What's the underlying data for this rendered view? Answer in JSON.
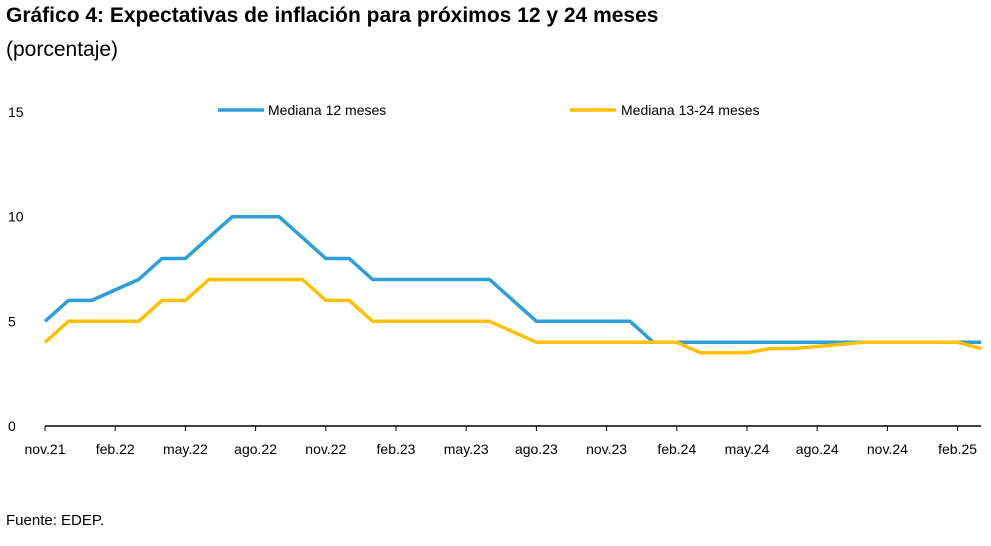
{
  "title": "Gráfico 4: Expectativas de inflación para próximos 12 y 24 meses",
  "subtitle": "(porcentaje)",
  "source": "Fuente: EDEP.",
  "chart_data": {
    "type": "line",
    "x": [
      "nov.21",
      "dic.21",
      "ene.22",
      "feb.22",
      "mar.22",
      "abr.22",
      "may.22",
      "jun.22",
      "jul.22",
      "ago.22",
      "sep.22",
      "oct.22",
      "nov.22",
      "dic.22",
      "ene.23",
      "feb.23",
      "mar.23",
      "abr.23",
      "may.23",
      "jun.23",
      "jul.23",
      "ago.23",
      "sep.23",
      "oct.23",
      "nov.23",
      "dic.23",
      "ene.24",
      "feb.24",
      "mar.24",
      "abr.24",
      "may.24",
      "jun.24",
      "jul.24",
      "ago.24",
      "sep.24",
      "oct.24",
      "nov.24",
      "dic.24",
      "ene.25",
      "feb.25",
      "mar.25"
    ],
    "tick_labels": [
      "nov.21",
      "feb.22",
      "may.22",
      "ago.22",
      "nov.22",
      "feb.23",
      "may.23",
      "ago.23",
      "nov.23",
      "feb.24",
      "may.24",
      "ago.24",
      "nov.24",
      "feb.25"
    ],
    "series": [
      {
        "name": "Mediana 12 meses",
        "color": "#2a9fd8",
        "values": [
          5,
          6,
          6,
          6.5,
          7,
          8,
          8,
          9,
          10,
          10,
          10,
          9,
          8,
          8,
          7,
          7,
          7,
          7,
          7,
          7,
          6,
          5,
          5,
          5,
          5,
          5,
          4,
          4,
          4,
          4,
          4,
          4,
          4,
          4,
          4,
          4,
          4,
          4,
          4,
          4,
          4
        ]
      },
      {
        "name": "Mediana 13-24 meses",
        "color": "#ffc000",
        "values": [
          4,
          5,
          5,
          5,
          5,
          6,
          6,
          7,
          7,
          7,
          7,
          7,
          6,
          6,
          5,
          5,
          5,
          5,
          5,
          5,
          4.5,
          4,
          4,
          4,
          4,
          4,
          4,
          4,
          3.5,
          3.5,
          3.5,
          3.7,
          3.7,
          3.8,
          3.9,
          4,
          4,
          4,
          4,
          4,
          3.7
        ]
      }
    ],
    "yticks": [
      0,
      5,
      10,
      15
    ],
    "ylim": [
      0,
      15
    ],
    "grid": false,
    "legend": "top"
  }
}
